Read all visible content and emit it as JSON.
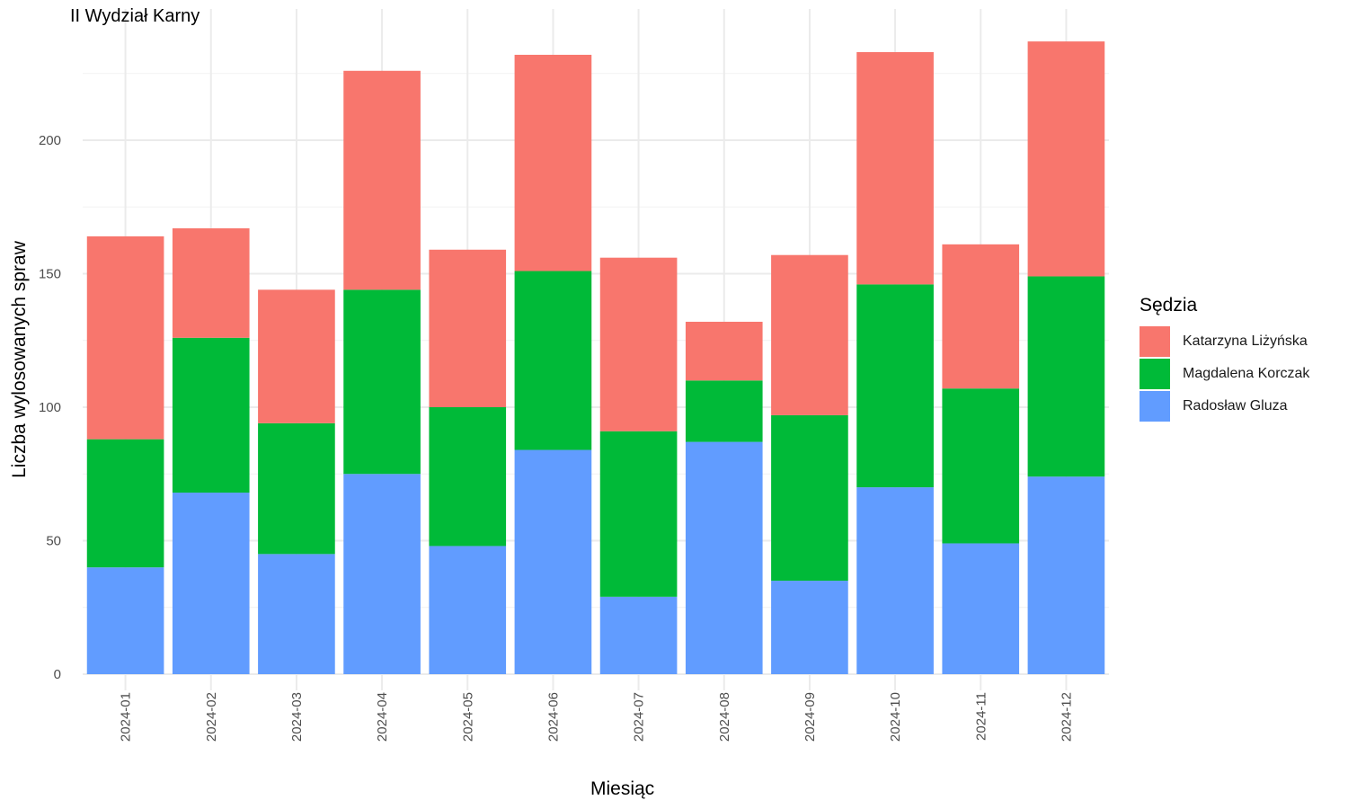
{
  "chart_data": {
    "type": "bar",
    "stacked": true,
    "title": "II Wydział Karny",
    "xlabel": "Miesiąc",
    "ylabel": "Liczba wylosowanych spraw",
    "ylim": [
      0,
      240
    ],
    "y_ticks": [
      0,
      50,
      100,
      150,
      200
    ],
    "grid": true,
    "legend_title": "Sędzia",
    "legend_position": "right",
    "categories": [
      "2024-01",
      "2024-02",
      "2024-03",
      "2024-04",
      "2024-05",
      "2024-06",
      "2024-07",
      "2024-08",
      "2024-09",
      "2024-10",
      "2024-11",
      "2024-12"
    ],
    "series": [
      {
        "name": "Katarzyna Liżyńska",
        "color": "#F8766D",
        "values": [
          76,
          41,
          50,
          82,
          59,
          81,
          65,
          22,
          60,
          87,
          54,
          88
        ]
      },
      {
        "name": "Magdalena Korczak",
        "color": "#00BA38",
        "values": [
          48,
          58,
          49,
          69,
          52,
          67,
          62,
          23,
          62,
          76,
          58,
          75
        ]
      },
      {
        "name": "Radosław Gluza",
        "color": "#619CFF",
        "values": [
          40,
          68,
          45,
          75,
          48,
          84,
          29,
          87,
          35,
          70,
          49,
          74
        ]
      }
    ]
  }
}
